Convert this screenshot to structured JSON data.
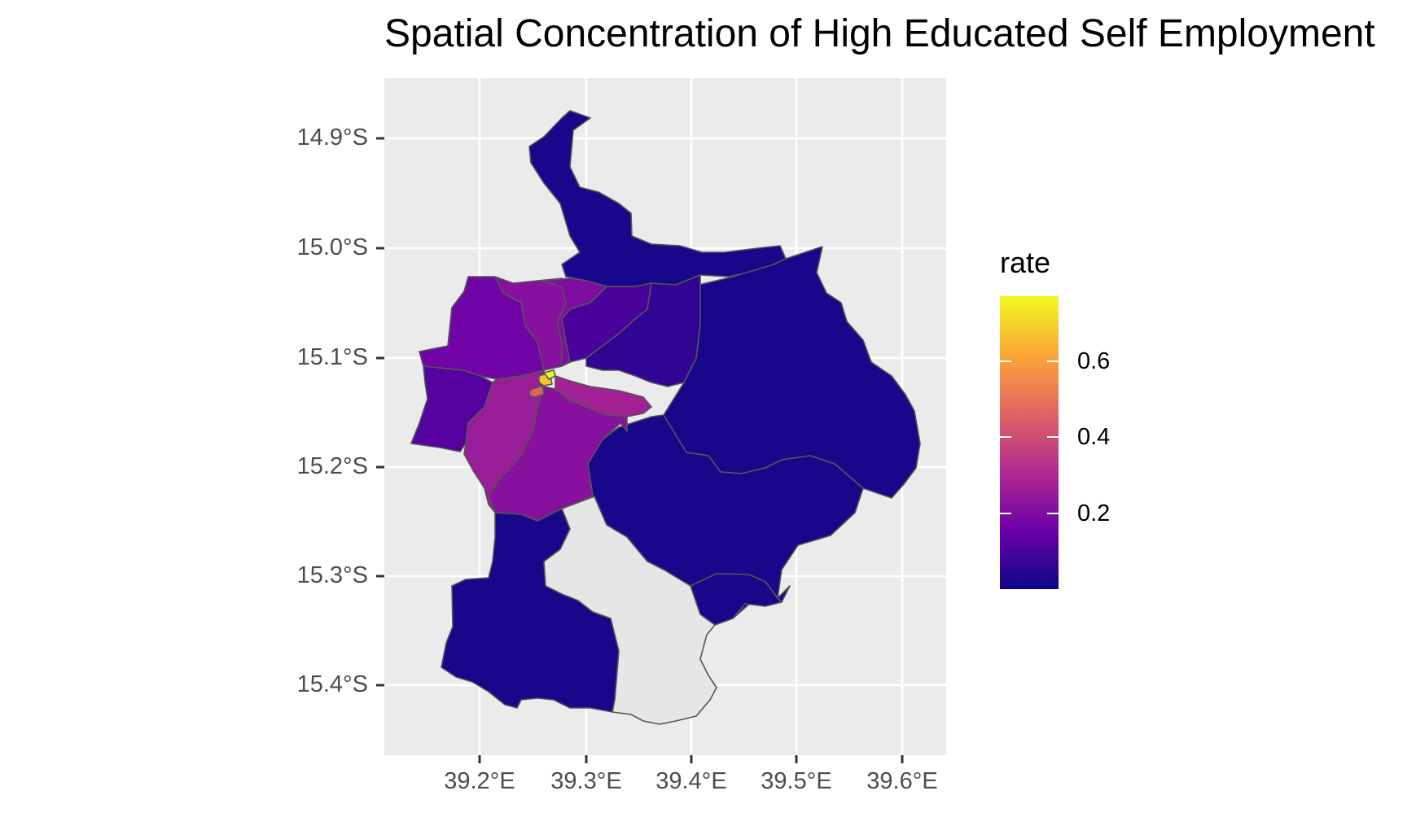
{
  "title": "Spatial Concentration of High Educated Self Employment",
  "colors": {
    "panel_bg": "#ebebeb",
    "grid": "#ffffff",
    "boundary": "#555555",
    "missing": "#e6e6e6",
    "scale_low": "#0d0887",
    "scale_mid1": "#6a00a8",
    "scale_mid2": "#b12a90",
    "scale_mid3": "#e16462",
    "scale_mid4": "#fca636",
    "scale_high": "#f0f921"
  },
  "axes": {
    "y_ticks": [
      "14.9°S",
      "15.0°S",
      "15.1°S",
      "15.2°S",
      "15.3°S",
      "15.4°S"
    ],
    "x_ticks": [
      "39.2°E",
      "39.3°E",
      "39.4°E",
      "39.5°E",
      "39.6°E"
    ]
  },
  "legend": {
    "title": "rate",
    "labels": [
      "0.6",
      "0.4",
      "0.2"
    ],
    "range": [
      0.0,
      0.78
    ]
  },
  "regions": [
    {
      "id": "north-strip",
      "rate": 0.02
    },
    {
      "id": "east-large",
      "rate": 0.02
    },
    {
      "id": "southeast",
      "rate": 0.02
    },
    {
      "id": "south-lobe",
      "rate": 0.02
    },
    {
      "id": "south-west",
      "rate": 0.02
    },
    {
      "id": "south-missing",
      "rate": null
    },
    {
      "id": "west-edge",
      "rate": 0.12
    },
    {
      "id": "nw-1",
      "rate": 0.17
    },
    {
      "id": "nw-2",
      "rate": 0.22
    },
    {
      "id": "nw-3",
      "rate": 0.2
    },
    {
      "id": "north-central",
      "rate": 0.1
    },
    {
      "id": "north-east-central",
      "rate": 0.06
    },
    {
      "id": "central-strip",
      "rate": 0.28
    },
    {
      "id": "central-south",
      "rate": 0.22
    },
    {
      "id": "sw-central",
      "rate": 0.26
    },
    {
      "id": "core-a",
      "rate": 0.46
    },
    {
      "id": "core-b",
      "rate": 0.68
    },
    {
      "id": "core-c",
      "rate": 0.78
    }
  ]
}
